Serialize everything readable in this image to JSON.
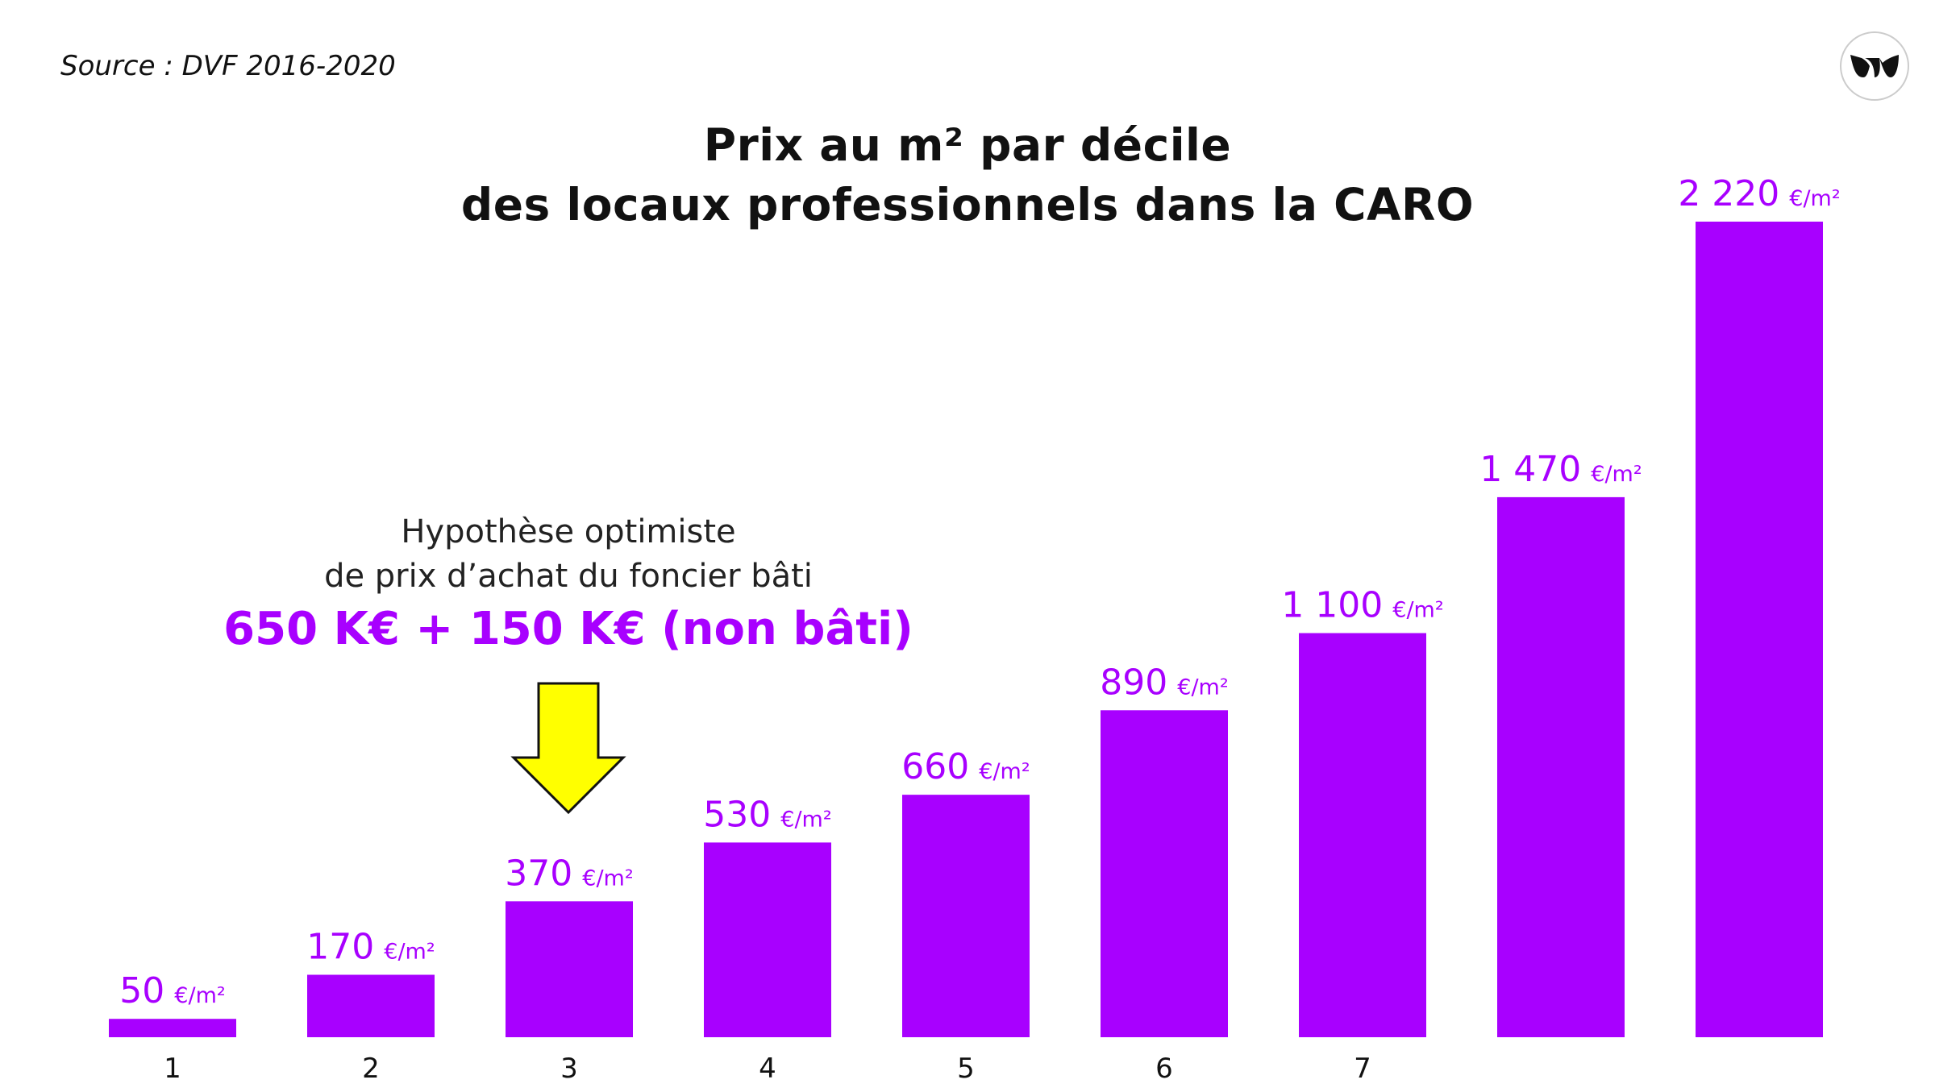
{
  "source": "Source : DVF 2016-2020",
  "logo_icon": "brand-logo-icon",
  "colors": {
    "bar": "#A800FF",
    "label": "#A800FF",
    "arrow": "#FFFF00",
    "text": "#111111"
  },
  "annotation": {
    "line1": "Hypothèse optimiste",
    "line2": "de prix d’achat du foncier bâti",
    "line3": "650 K€ + 150 K€ (non bâti)",
    "arrow_icon": "down-arrow-icon",
    "points_to_category": "3"
  },
  "chart_data": {
    "type": "bar",
    "title": "Prix au m² par décile",
    "subtitle": "des locaux professionnels dans la CARO",
    "categories": [
      "1",
      "2",
      "3",
      "4",
      "5",
      "6",
      "7",
      "",
      ""
    ],
    "values": [
      50,
      170,
      370,
      530,
      660,
      890,
      1100,
      1470,
      2220
    ],
    "value_labels": [
      "50",
      "170",
      "370",
      "530",
      "660",
      "890",
      "1 100",
      "1 470",
      "2 220"
    ],
    "unit": "€/m²",
    "ylim": [
      0,
      2220
    ],
    "grid": false,
    "xlabel": "",
    "ylabel": ""
  }
}
